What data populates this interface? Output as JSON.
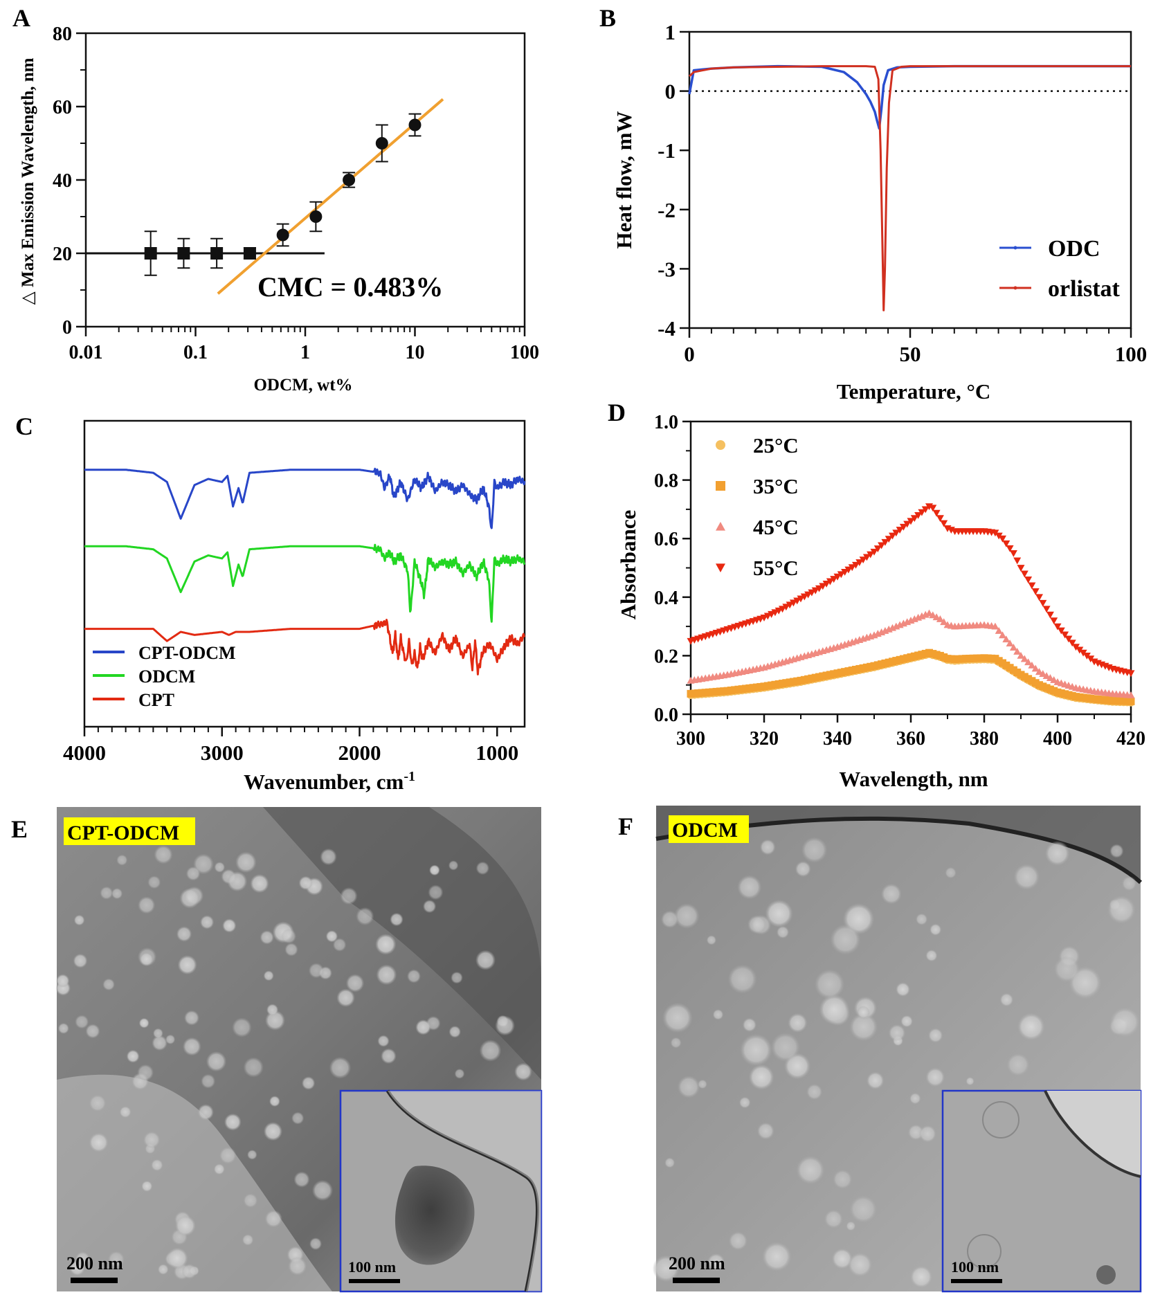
{
  "panels": {
    "A": {
      "letter": "A"
    },
    "B": {
      "letter": "B"
    },
    "C": {
      "letter": "C"
    },
    "D": {
      "letter": "D"
    },
    "E": {
      "letter": "E",
      "tag": "CPT-ODCM",
      "scale_main": "200 nm",
      "scale_inset": "100 nm"
    },
    "F": {
      "letter": "F",
      "tag": "ODCM",
      "scale_main": "200 nm",
      "scale_inset": "100 nm"
    }
  },
  "chart_data": [
    {
      "id": "A",
      "type": "scatter",
      "xlabel": "ODCM, wt%",
      "ylabel": "△ Max Emission Wavelength, nm",
      "x_scale": "log",
      "xlim": [
        0.01,
        100
      ],
      "ylim": [
        0,
        80
      ],
      "x_ticks": [
        "0.01",
        "0.1",
        "1",
        "10",
        "100"
      ],
      "y_ticks": [
        "0",
        "20",
        "40",
        "60",
        "80"
      ],
      "annotation": "CMC = 0.483%",
      "series": [
        {
          "marker": "square",
          "color": "#111111",
          "x": [
            0.039,
            0.078,
            0.156,
            0.3125
          ],
          "y": [
            20,
            20,
            20,
            20
          ],
          "err": [
            6,
            4,
            4,
            1.5
          ]
        },
        {
          "marker": "circle",
          "color": "#111111",
          "x": [
            0.625,
            1.25,
            2.5,
            5,
            10
          ],
          "y": [
            25,
            30,
            40,
            50,
            55
          ],
          "err": [
            3,
            4,
            2,
            5,
            3
          ]
        }
      ],
      "fit_lines": [
        {
          "color": "#111111",
          "x": [
            0.01,
            1.5
          ],
          "y": [
            20,
            20
          ]
        },
        {
          "color": "#f0a030",
          "x": [
            0.16,
            18
          ],
          "y": [
            9,
            62
          ]
        }
      ]
    },
    {
      "id": "B",
      "type": "line",
      "xlabel": "Temperature, °C",
      "ylabel": "Heat flow, mW",
      "xlim": [
        0,
        100
      ],
      "ylim": [
        -4,
        1
      ],
      "x_ticks": [
        "0",
        "50",
        "100"
      ],
      "y_ticks": [
        "-4",
        "-3",
        "-2",
        "-1",
        "0",
        "1"
      ],
      "zero_line": "dotted",
      "legend_position": "bottom-right",
      "series": [
        {
          "name": "ODC",
          "color": "#2a4fd0",
          "x": [
            0,
            1,
            5,
            10,
            20,
            30,
            35,
            38,
            40,
            41,
            42,
            42.5,
            43,
            43.5,
            44,
            45,
            47,
            50,
            60,
            80,
            100
          ],
          "y": [
            -0.05,
            0.35,
            0.38,
            0.4,
            0.42,
            0.41,
            0.32,
            0.15,
            -0.05,
            -0.18,
            -0.35,
            -0.5,
            -0.63,
            -0.3,
            0.1,
            0.35,
            0.4,
            0.41,
            0.42,
            0.42,
            0.42
          ]
        },
        {
          "name": "orlistat",
          "color": "#d03020",
          "x": [
            0,
            1,
            5,
            10,
            20,
            30,
            40,
            42,
            42.8,
            43.3,
            43.7,
            44,
            44.3,
            44.7,
            45.2,
            46,
            48,
            50,
            60,
            80,
            100
          ],
          "y": [
            0.25,
            0.32,
            0.38,
            0.4,
            0.41,
            0.42,
            0.42,
            0.41,
            0.2,
            -1.0,
            -2.5,
            -3.7,
            -3.0,
            -1.3,
            -0.2,
            0.35,
            0.41,
            0.42,
            0.42,
            0.42,
            0.42
          ]
        }
      ]
    },
    {
      "id": "C",
      "type": "line",
      "xlabel": "Wavenumber, cm",
      "xlabel_sup": "-1",
      "xlim": [
        4000,
        800
      ],
      "x_ticks": [
        "4000",
        "3000",
        "2000",
        "1000"
      ],
      "legend_position": "bottom-left",
      "series": [
        {
          "name": "CPT-ODCM",
          "color": "#2846c8",
          "offset": 0.84,
          "x": [
            4000,
            3700,
            3500,
            3400,
            3300,
            3200,
            3100,
            3000,
            2960,
            2920,
            2880,
            2850,
            2800,
            2500,
            2000,
            1850,
            1820,
            1780,
            1750,
            1700,
            1650,
            1600,
            1550,
            1500,
            1450,
            1400,
            1350,
            1300,
            1250,
            1200,
            1150,
            1100,
            1060,
            1040,
            1020,
            1000,
            950,
            900,
            850,
            800
          ],
          "y": [
            0,
            0,
            -0.01,
            -0.04,
            -0.16,
            -0.05,
            -0.03,
            -0.04,
            -0.02,
            -0.12,
            -0.06,
            -0.11,
            -0.01,
            0,
            0,
            -0.01,
            -0.06,
            -0.02,
            -0.09,
            -0.04,
            -0.1,
            -0.03,
            -0.06,
            -0.02,
            -0.07,
            -0.04,
            -0.05,
            -0.07,
            -0.05,
            -0.08,
            -0.1,
            -0.06,
            -0.12,
            -0.2,
            -0.04,
            -0.06,
            -0.04,
            -0.05,
            -0.03,
            -0.04
          ]
        },
        {
          "name": "ODCM",
          "color": "#22d622",
          "offset": 0.59,
          "x": [
            4000,
            3700,
            3500,
            3400,
            3300,
            3200,
            3100,
            3000,
            2960,
            2920,
            2880,
            2850,
            2800,
            2500,
            2000,
            1850,
            1820,
            1780,
            1750,
            1700,
            1650,
            1630,
            1600,
            1550,
            1530,
            1500,
            1450,
            1400,
            1350,
            1300,
            1250,
            1200,
            1150,
            1100,
            1060,
            1040,
            1020,
            1000,
            950,
            900,
            850,
            800
          ],
          "y": [
            0,
            0,
            -0.01,
            -0.04,
            -0.15,
            -0.05,
            -0.03,
            -0.04,
            -0.02,
            -0.13,
            -0.06,
            -0.1,
            -0.01,
            0,
            0,
            -0.01,
            -0.04,
            -0.02,
            -0.05,
            -0.03,
            -0.08,
            -0.22,
            -0.05,
            -0.12,
            -0.16,
            -0.04,
            -0.07,
            -0.05,
            -0.06,
            -0.05,
            -0.09,
            -0.06,
            -0.1,
            -0.05,
            -0.11,
            -0.25,
            -0.04,
            -0.06,
            -0.04,
            -0.05,
            -0.04,
            -0.05
          ]
        },
        {
          "name": "CPT",
          "color": "#e22a12",
          "offset": 0.32,
          "x": [
            4000,
            3700,
            3500,
            3450,
            3400,
            3300,
            3200,
            3000,
            2950,
            2900,
            2800,
            2500,
            2000,
            1800,
            1760,
            1740,
            1720,
            1700,
            1680,
            1660,
            1640,
            1620,
            1600,
            1580,
            1560,
            1540,
            1500,
            1450,
            1400,
            1350,
            1300,
            1250,
            1200,
            1180,
            1160,
            1140,
            1100,
            1050,
            1000,
            950,
            900,
            850,
            800
          ],
          "y": [
            0,
            0,
            0,
            -0.02,
            -0.04,
            -0.01,
            -0.02,
            -0.01,
            -0.02,
            -0.01,
            -0.01,
            0,
            0,
            0.02,
            -0.08,
            -0.02,
            -0.1,
            -0.03,
            -0.08,
            -0.11,
            -0.04,
            -0.12,
            -0.08,
            -0.13,
            -0.06,
            -0.1,
            -0.04,
            -0.08,
            -0.02,
            -0.07,
            -0.03,
            -0.09,
            -0.05,
            -0.13,
            -0.04,
            -0.14,
            -0.07,
            -0.05,
            -0.1,
            -0.06,
            -0.03,
            -0.05,
            -0.02
          ]
        }
      ]
    },
    {
      "id": "D",
      "type": "scatter",
      "xlabel": "Wavelength, nm",
      "ylabel": "Absorbance",
      "xlim": [
        300,
        420
      ],
      "ylim": [
        0,
        1.0
      ],
      "x_ticks": [
        "300",
        "320",
        "340",
        "360",
        "380",
        "400",
        "420"
      ],
      "y_ticks": [
        "0.0",
        "0.2",
        "0.4",
        "0.6",
        "0.8",
        "1.0"
      ],
      "legend_position": "top-left",
      "series": [
        {
          "name": "25°C",
          "marker": "circle",
          "color": "#f5c060",
          "x": [
            300,
            310,
            320,
            330,
            340,
            350,
            355,
            360,
            365,
            368,
            370,
            372,
            375,
            380,
            383,
            385,
            390,
            395,
            400,
            405,
            410,
            415,
            420
          ],
          "y": [
            0.065,
            0.075,
            0.09,
            0.11,
            0.135,
            0.16,
            0.175,
            0.19,
            0.205,
            0.195,
            0.185,
            0.182,
            0.185,
            0.187,
            0.185,
            0.17,
            0.13,
            0.095,
            0.07,
            0.055,
            0.048,
            0.042,
            0.04
          ]
        },
        {
          "name": "35°C",
          "marker": "square",
          "color": "#f2a030",
          "x": [
            300,
            310,
            320,
            330,
            340,
            350,
            355,
            360,
            365,
            368,
            370,
            372,
            375,
            380,
            383,
            385,
            390,
            395,
            400,
            405,
            410,
            415,
            420
          ],
          "y": [
            0.07,
            0.08,
            0.095,
            0.115,
            0.14,
            0.165,
            0.18,
            0.195,
            0.21,
            0.2,
            0.19,
            0.188,
            0.19,
            0.192,
            0.19,
            0.175,
            0.135,
            0.1,
            0.075,
            0.06,
            0.052,
            0.046,
            0.044
          ]
        },
        {
          "name": "45°C",
          "marker": "triangle-up",
          "color": "#f08a80",
          "x": [
            300,
            310,
            320,
            330,
            340,
            350,
            355,
            360,
            365,
            368,
            370,
            372,
            375,
            380,
            383,
            385,
            390,
            395,
            400,
            405,
            410,
            415,
            420
          ],
          "y": [
            0.115,
            0.135,
            0.16,
            0.195,
            0.23,
            0.27,
            0.295,
            0.32,
            0.345,
            0.325,
            0.305,
            0.3,
            0.302,
            0.305,
            0.3,
            0.27,
            0.2,
            0.145,
            0.11,
            0.09,
            0.078,
            0.07,
            0.065
          ]
        },
        {
          "name": "55°C",
          "marker": "triangle-down",
          "color": "#e82810",
          "x": [
            300,
            305,
            310,
            315,
            320,
            325,
            330,
            335,
            340,
            345,
            350,
            355,
            360,
            363,
            365,
            366,
            368,
            370,
            372,
            375,
            380,
            383,
            385,
            388,
            390,
            395,
            400,
            405,
            410,
            415,
            420
          ],
          "y": [
            0.25,
            0.27,
            0.29,
            0.31,
            0.33,
            0.36,
            0.395,
            0.43,
            0.47,
            0.51,
            0.555,
            0.61,
            0.66,
            0.69,
            0.71,
            0.705,
            0.67,
            0.635,
            0.625,
            0.625,
            0.625,
            0.62,
            0.6,
            0.55,
            0.5,
            0.4,
            0.3,
            0.23,
            0.18,
            0.155,
            0.14
          ]
        }
      ]
    }
  ]
}
